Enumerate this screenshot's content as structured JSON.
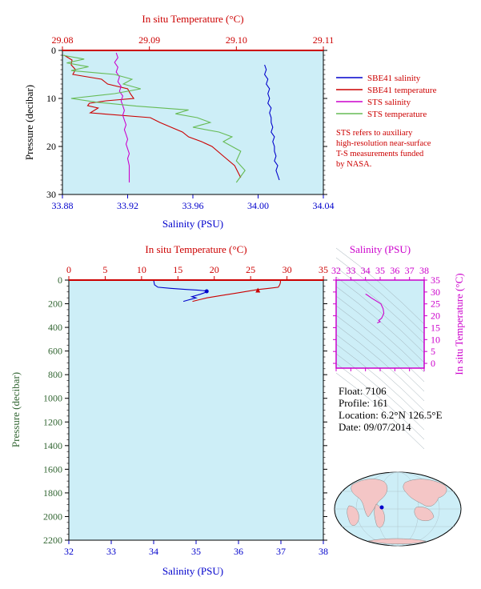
{
  "colors": {
    "plot_bg": "#cdeef7",
    "salinity": "#0000cc",
    "temperature": "#cc0000",
    "sts_salinity": "#cc00cc",
    "sts_temperature": "#66bb55",
    "pressure_axis": "#336633",
    "ts_axis": "#cc00cc"
  },
  "float_info": {
    "float": "Float:  7106",
    "profile": "Profile:  161",
    "location": "Location:  6.2°N  126.5°E",
    "date": "Date:  09/07/2014"
  },
  "legend": {
    "items": [
      {
        "label": "SBE41 salinity",
        "color": "#0000cc"
      },
      {
        "label": "SBE41 temperature",
        "color": "#cc0000"
      },
      {
        "label": "STS salinity",
        "color": "#cc00cc"
      },
      {
        "label": "STS temperature",
        "color": "#66bb55"
      }
    ]
  },
  "note": {
    "lines": [
      "STS refers to auxiliary",
      "high-resolution near-surface",
      "T-S measurements funded",
      "by NASA."
    ]
  },
  "footer": {
    "text": ""
  },
  "chart_data": [
    {
      "type": "line",
      "name": "near-surface-profile",
      "top_axis_label": "In situ Temperature (°C)",
      "bottom_axis_label": "Salinity (PSU)",
      "left_axis_label": "Pressure (decibar)",
      "temp_lim": [
        29.08,
        29.11
      ],
      "temp_ticks": [
        "29.08",
        "29.09",
        "29.10",
        "29.11"
      ],
      "sal_lim": [
        33.88,
        34.04
      ],
      "sal_ticks": [
        "33.88",
        "33.92",
        "33.96",
        "34.00",
        "34.04"
      ],
      "pres_lim": [
        0,
        30
      ],
      "pres_ticks": [
        "0",
        "10",
        "20",
        "30"
      ],
      "series": [
        {
          "name": "SBE41 salinity",
          "var": "salinity",
          "color": "#0000cc",
          "x": [
            34.004,
            34.005,
            34.004,
            34.006,
            34.005,
            34.007,
            34.006,
            34.007,
            34.006,
            34.008,
            34.007,
            34.008,
            34.008,
            34.009,
            34.008,
            34.01,
            34.009,
            34.01,
            34.01,
            34.011,
            34.01,
            34.012,
            34.011,
            34.012,
            34.013
          ],
          "y": [
            3,
            4,
            5,
            6,
            7,
            8,
            9,
            10,
            11,
            12,
            13,
            14,
            15,
            16,
            17,
            18,
            19,
            20,
            21,
            22,
            23,
            24,
            25,
            26,
            27
          ]
        },
        {
          "name": "SBE41 temperature",
          "var": "temperature",
          "color": "#cc0000",
          "x": [
            29.0802,
            29.0811,
            29.081,
            29.0815,
            29.0812,
            29.0845,
            29.0852,
            29.0875,
            29.0878,
            29.0882,
            29.085,
            29.0831,
            29.0829,
            29.0841,
            29.0832,
            29.0901,
            29.0912,
            29.0925,
            29.0938,
            29.0945,
            29.096,
            29.0972,
            29.0985,
            29.0998,
            29.1005
          ],
          "y": [
            1,
            2,
            3,
            4,
            5,
            6,
            7,
            8,
            9,
            10,
            10.5,
            11,
            11.5,
            12,
            13,
            14,
            15,
            16,
            17,
            18,
            19,
            20,
            22,
            24,
            26.5
          ]
        },
        {
          "name": "STS salinity",
          "var": "salinity",
          "color": "#cc00cc",
          "x": [
            33.913,
            33.914,
            33.912,
            33.914,
            33.913,
            33.915,
            33.914,
            33.916,
            33.915,
            33.917,
            33.916,
            33.917,
            33.918,
            33.917,
            33.918,
            33.919,
            33.918,
            33.919,
            33.92,
            33.919,
            33.92,
            33.921,
            33.92,
            33.921,
            33.921
          ],
          "y": [
            0.5,
            1.5,
            2.5,
            3.5,
            4.5,
            5.5,
            6.5,
            7.5,
            8.5,
            9.5,
            10.5,
            11.5,
            12.5,
            13.5,
            14.5,
            15.5,
            16.5,
            17.5,
            18.5,
            19.5,
            20.5,
            21.5,
            22.5,
            24,
            27.5
          ]
        },
        {
          "name": "STS temperature",
          "var": "temperature",
          "color": "#66bb55",
          "x": [
            29.08,
            29.0825,
            29.0805,
            29.083,
            29.081,
            29.086,
            29.088,
            29.087,
            29.089,
            29.086,
            29.081,
            29.084,
            29.0885,
            29.0945,
            29.093,
            29.0955,
            29.097,
            29.095,
            29.098,
            29.0995,
            29.0985,
            29.1005,
            29.1,
            29.101,
            29.1
          ],
          "y": [
            1,
            1.8,
            2.6,
            3.4,
            4.2,
            5,
            6,
            7,
            8,
            9,
            10,
            10.8,
            11.6,
            12.4,
            13.2,
            14,
            15,
            16,
            17,
            18,
            19,
            21,
            23,
            25,
            27.5
          ]
        }
      ]
    },
    {
      "type": "line",
      "name": "full-depth-profile",
      "top_axis_label": "In situ Temperature (°C)",
      "bottom_axis_label": "Salinity (PSU)",
      "left_axis_label": "Pressure (decibar)",
      "temp_lim": [
        0,
        35
      ],
      "temp_ticks": [
        "0",
        "5",
        "10",
        "15",
        "20",
        "25",
        "30",
        "35"
      ],
      "sal_lim": [
        32,
        38
      ],
      "sal_ticks": [
        "32",
        "33",
        "34",
        "35",
        "36",
        "37",
        "38"
      ],
      "pres_lim": [
        0,
        2200
      ],
      "pres_ticks": [
        "0",
        "200",
        "400",
        "600",
        "800",
        "1000",
        "1200",
        "1400",
        "1600",
        "1800",
        "2000",
        "2200"
      ],
      "series": [
        {
          "name": "SBE41 salinity",
          "var": "salinity",
          "color": "#0000cc",
          "x": [
            34.0,
            34.01,
            34.02,
            34.1,
            34.4,
            34.8,
            35.05,
            35.2,
            35.25,
            35.1,
            34.9,
            35.0,
            34.8,
            34.7
          ],
          "y": [
            0,
            20,
            40,
            60,
            70,
            80,
            85,
            90,
            100,
            120,
            140,
            150,
            170,
            180
          ]
        },
        {
          "name": "SBE41 temperature",
          "var": "temperature",
          "color": "#cc0000",
          "x": [
            29.1,
            29.1,
            29.0,
            28.8,
            27.5,
            26.0,
            25.0,
            23.0,
            21.0,
            19.0,
            18.0,
            17.0
          ],
          "y": [
            0,
            20,
            40,
            60,
            70,
            80,
            90,
            110,
            130,
            150,
            165,
            180
          ]
        }
      ],
      "surface_marker": {
        "salinity": 35.25,
        "temperature": 26.0,
        "pressure": 95
      }
    },
    {
      "type": "line",
      "name": "ts-diagram",
      "top_axis_label": "Salinity (PSU)",
      "right_axis_label": "In situ Temperature (°C)",
      "sal_lim": [
        32,
        38
      ],
      "sal_ticks": [
        "32",
        "33",
        "34",
        "35",
        "36",
        "37",
        "38"
      ],
      "temp_lim": [
        -2,
        35
      ],
      "temp_ticks": [
        "0",
        "5",
        "10",
        "15",
        "20",
        "25",
        "30",
        "35"
      ],
      "series": [
        {
          "name": "T-S",
          "color": "#cc00cc",
          "x": [
            34.0,
            34.01,
            34.1,
            34.4,
            34.8,
            35.05,
            35.2,
            35.25,
            35.1,
            34.9,
            35.0,
            34.8
          ],
          "y": [
            29.1,
            29.1,
            28.8,
            27.5,
            26.0,
            25.0,
            23.0,
            21.0,
            19.0,
            18.0,
            17.5,
            17.0
          ]
        }
      ]
    }
  ]
}
